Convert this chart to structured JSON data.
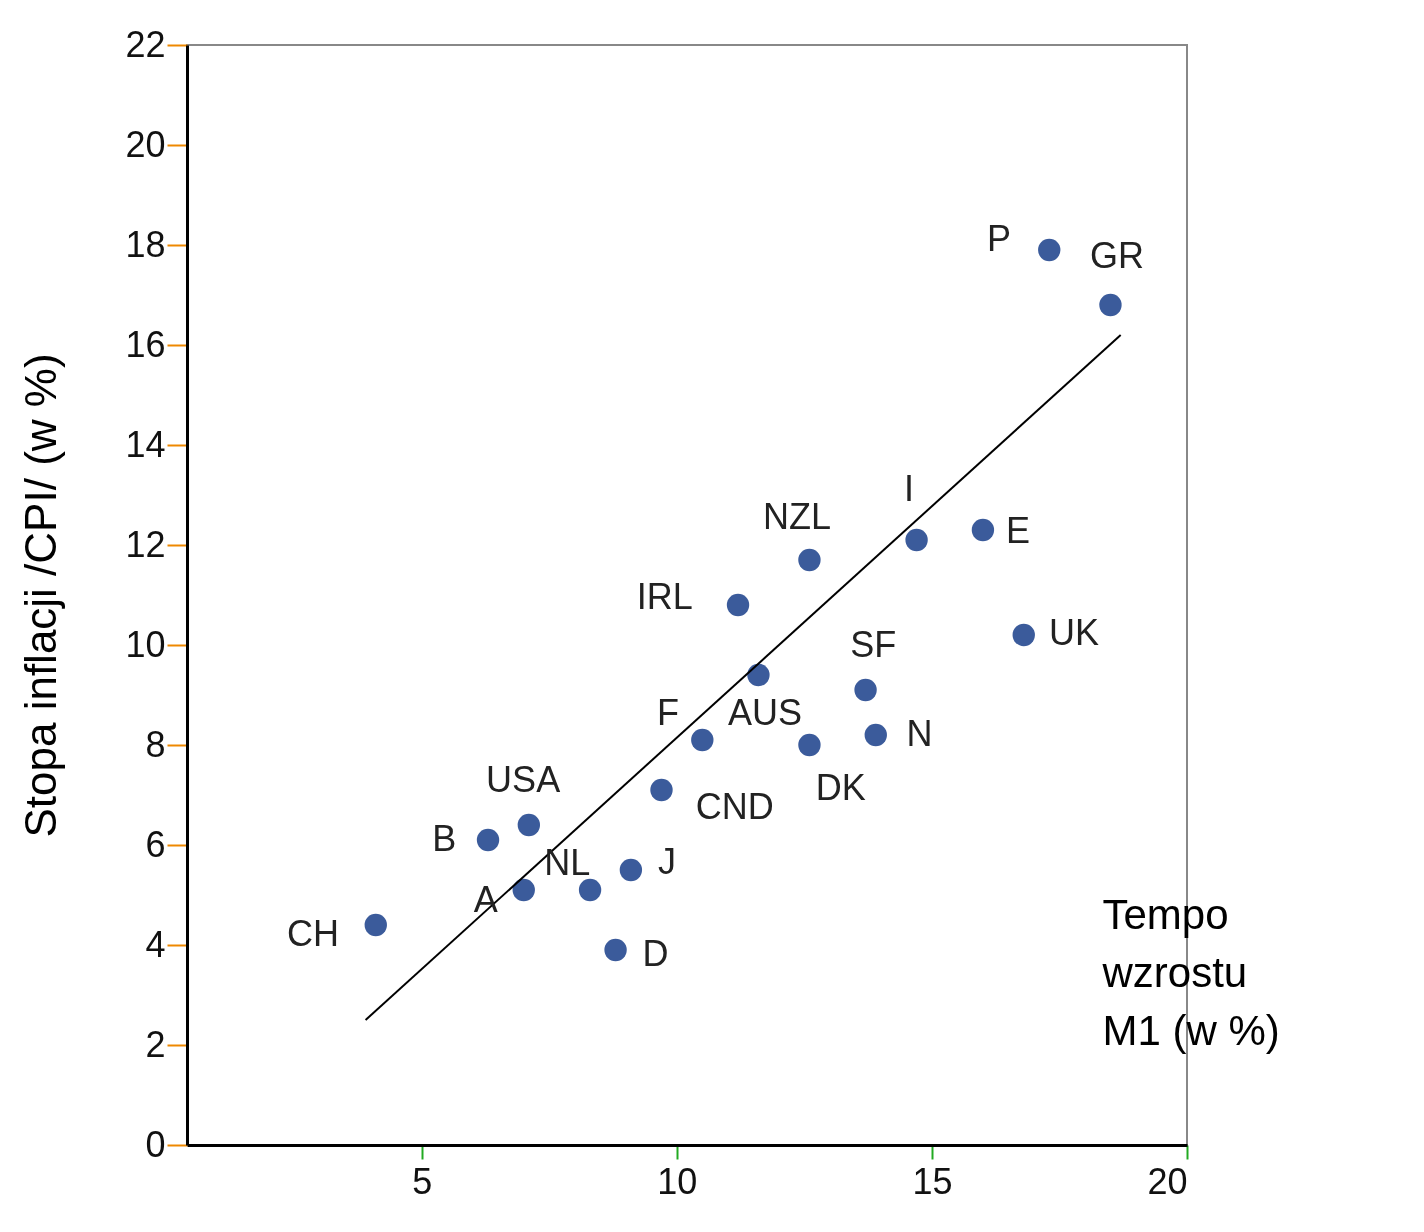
{
  "chart_data": {
    "type": "scatter",
    "xlabel": "Tempo wzrostu M1 (w %)",
    "ylabel": "Stopa inflacji /CPI/ (w %)",
    "xlim": [
      0.4,
      20
    ],
    "xticks": [
      5,
      10,
      15,
      20
    ],
    "ylim": [
      0,
      22
    ],
    "yticks": [
      0,
      2,
      4,
      6,
      8,
      10,
      12,
      14,
      16,
      18,
      20,
      22
    ],
    "grid": false,
    "series": [
      {
        "marker": "circle",
        "color": "#3b5b9b",
        "x": [
          4.1,
          7.0,
          6.3,
          7.1,
          8.3,
          9.1,
          8.8,
          9.7,
          10.5,
          11.6,
          12.6,
          11.2,
          12.6,
          13.7,
          13.9,
          14.7,
          16.0,
          16.8,
          17.3,
          18.5
        ],
        "values": [
          4.4,
          5.1,
          6.1,
          6.4,
          5.1,
          5.5,
          3.9,
          7.1,
          8.1,
          9.4,
          8.0,
          10.8,
          11.7,
          9.1,
          8.2,
          12.1,
          12.3,
          10.2,
          17.9,
          16.8
        ]
      },
      {
        "type": "line",
        "color": "#000000",
        "x": [
          3.9,
          18.7
        ],
        "values": [
          2.5,
          16.2
        ]
      }
    ],
    "annotations": [
      {
        "text": "CH",
        "x": 4.1,
        "y": 4.4
      },
      {
        "text": "A",
        "x": 7.0,
        "y": 5.1
      },
      {
        "text": "B",
        "x": 6.3,
        "y": 6.1
      },
      {
        "text": "USA",
        "x": 7.1,
        "y": 6.4
      },
      {
        "text": "NL",
        "x": 8.3,
        "y": 5.1
      },
      {
        "text": "J",
        "x": 9.1,
        "y": 5.5
      },
      {
        "text": "D",
        "x": 8.8,
        "y": 3.9
      },
      {
        "text": "CND",
        "x": 9.7,
        "y": 7.1
      },
      {
        "text": "F",
        "x": 10.5,
        "y": 8.1
      },
      {
        "text": "AUS",
        "x": 11.6,
        "y": 9.4
      },
      {
        "text": "DK",
        "x": 12.6,
        "y": 8.0
      },
      {
        "text": "IRL",
        "x": 11.2,
        "y": 10.8
      },
      {
        "text": "NZL",
        "x": 12.6,
        "y": 11.7
      },
      {
        "text": "SF",
        "x": 13.7,
        "y": 9.1
      },
      {
        "text": "N",
        "x": 13.9,
        "y": 8.2
      },
      {
        "text": "I",
        "x": 14.7,
        "y": 12.1
      },
      {
        "text": "E",
        "x": 16.0,
        "y": 12.3
      },
      {
        "text": "UK",
        "x": 16.8,
        "y": 10.2
      },
      {
        "text": "P",
        "x": 17.3,
        "y": 17.9
      },
      {
        "text": "GR",
        "x": 18.5,
        "y": 16.8
      }
    ]
  }
}
